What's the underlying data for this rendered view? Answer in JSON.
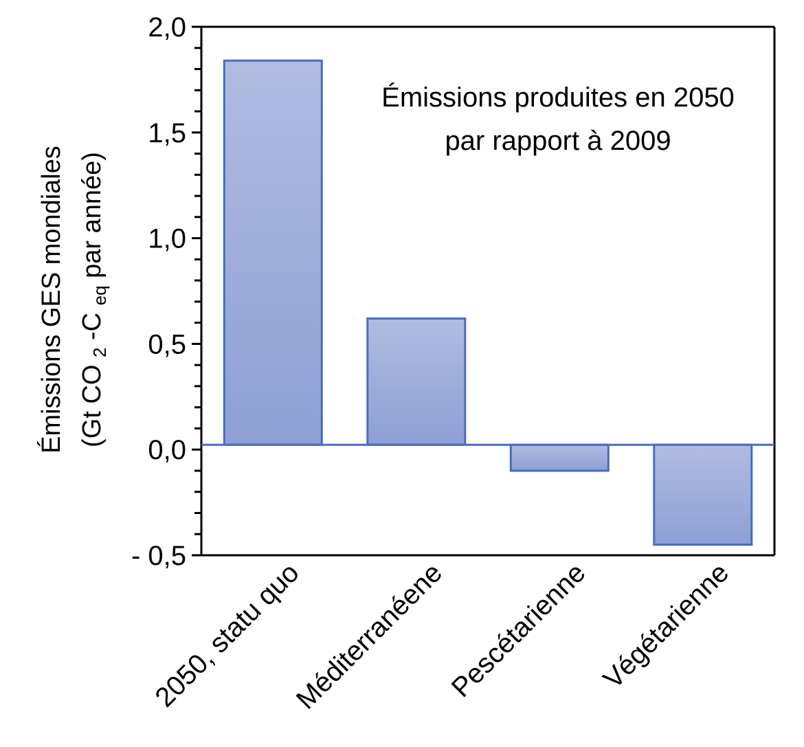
{
  "chart_data": {
    "type": "bar",
    "categories": [
      "2050, statu quo",
      "Méditerranéene",
      "Pescétarienne",
      "Végétarienne"
    ],
    "values": [
      1.84,
      0.62,
      -0.1,
      -0.45
    ],
    "ylim": [
      -0.5,
      2.0
    ],
    "yticks": [
      -0.5,
      0.0,
      0.5,
      1.0,
      1.5,
      2.0
    ],
    "ytick_labels": [
      "- 0,5",
      "0,0",
      "0,5",
      "1,0",
      "1,5",
      "2,0"
    ],
    "ylabel_line1": "Émissions GES mondiales",
    "ylabel_line2_parts": [
      "(Gt CO",
      "2",
      "-C",
      "eq",
      " par année)"
    ],
    "annotation": [
      "Émissions produites  en 2050",
      "par rapport  à 2009"
    ],
    "grid": false,
    "colors": {
      "bar_fill_top": "#b0bce1",
      "bar_fill_bottom": "#8d9fd4",
      "bar_stroke": "#4a6bbf",
      "axis": "#000000"
    }
  }
}
